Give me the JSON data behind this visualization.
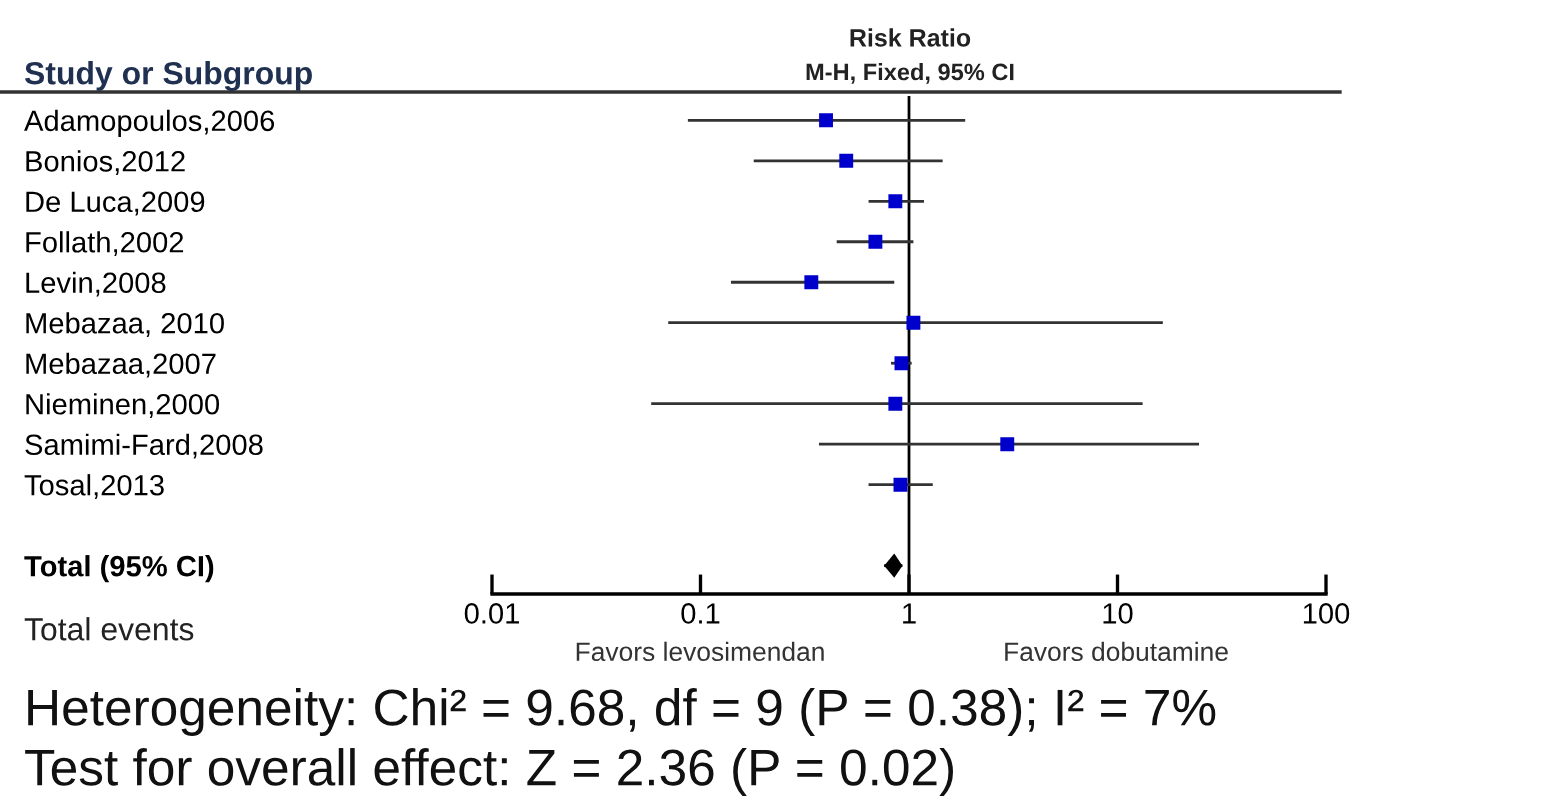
{
  "chart_data": {
    "type": "scatter",
    "orientation": "horizontal",
    "title": "Risk Ratio",
    "subtitle": "M-H, Fixed, 95% CI",
    "categories": [
      "Adamopoulos,2006",
      "Bonios,2012",
      "De Luca,2009",
      "Follath,2002",
      "Levin,2008",
      "Mebazaa, 2010",
      "Mebazaa,2007",
      "Nieminen,2000",
      "Samimi-Fard,2008",
      "Tosal,2013",
      null,
      "Total (95% CI)"
    ],
    "series": [
      {
        "type": "scatter",
        "marker": "square",
        "color": "#0000cc",
        "values": [
          0.4,
          0.5,
          0.86,
          0.69,
          0.34,
          1.05,
          0.92,
          0.86,
          2.96,
          0.91,
          null,
          null
        ],
        "errors": [
          [
            0.087,
            1.86
          ],
          [
            0.18,
            1.45
          ],
          [
            0.64,
            1.18
          ],
          [
            0.45,
            1.05
          ],
          [
            0.14,
            0.85
          ],
          [
            0.07,
            16.5
          ],
          [
            0.82,
            1.03
          ],
          [
            0.058,
            13.2
          ],
          [
            0.37,
            24.6
          ],
          [
            0.64,
            1.3
          ],
          null,
          null
        ]
      },
      {
        "type": "scatter",
        "marker": "diamond",
        "color": "#000000",
        "values": [
          null,
          null,
          null,
          null,
          null,
          null,
          null,
          null,
          null,
          null,
          null,
          0.85
        ],
        "errors": [
          null,
          null,
          null,
          null,
          null,
          null,
          null,
          null,
          null,
          null,
          null,
          [
            0.76,
            0.93
          ]
        ]
      }
    ],
    "log": "x",
    "xlim": [
      0.01,
      100
    ],
    "xticks": [
      0.01,
      0.1,
      1,
      10,
      100
    ],
    "grid": false,
    "tick_labels": "x",
    "ref_lines": [
      {
        "axis": "x",
        "value": 1,
        "color": "#000000"
      }
    ],
    "annotations": [
      "Study or Subgroup",
      "Total events",
      "Favors levosimendan",
      "Favors dobutamine",
      "Heterogeneity: Chi² = 9.68, df = 9 (P = 0.38); I² = 7%",
      "Test for overall effect: Z = 2.36 (P = 0.02)"
    ]
  }
}
